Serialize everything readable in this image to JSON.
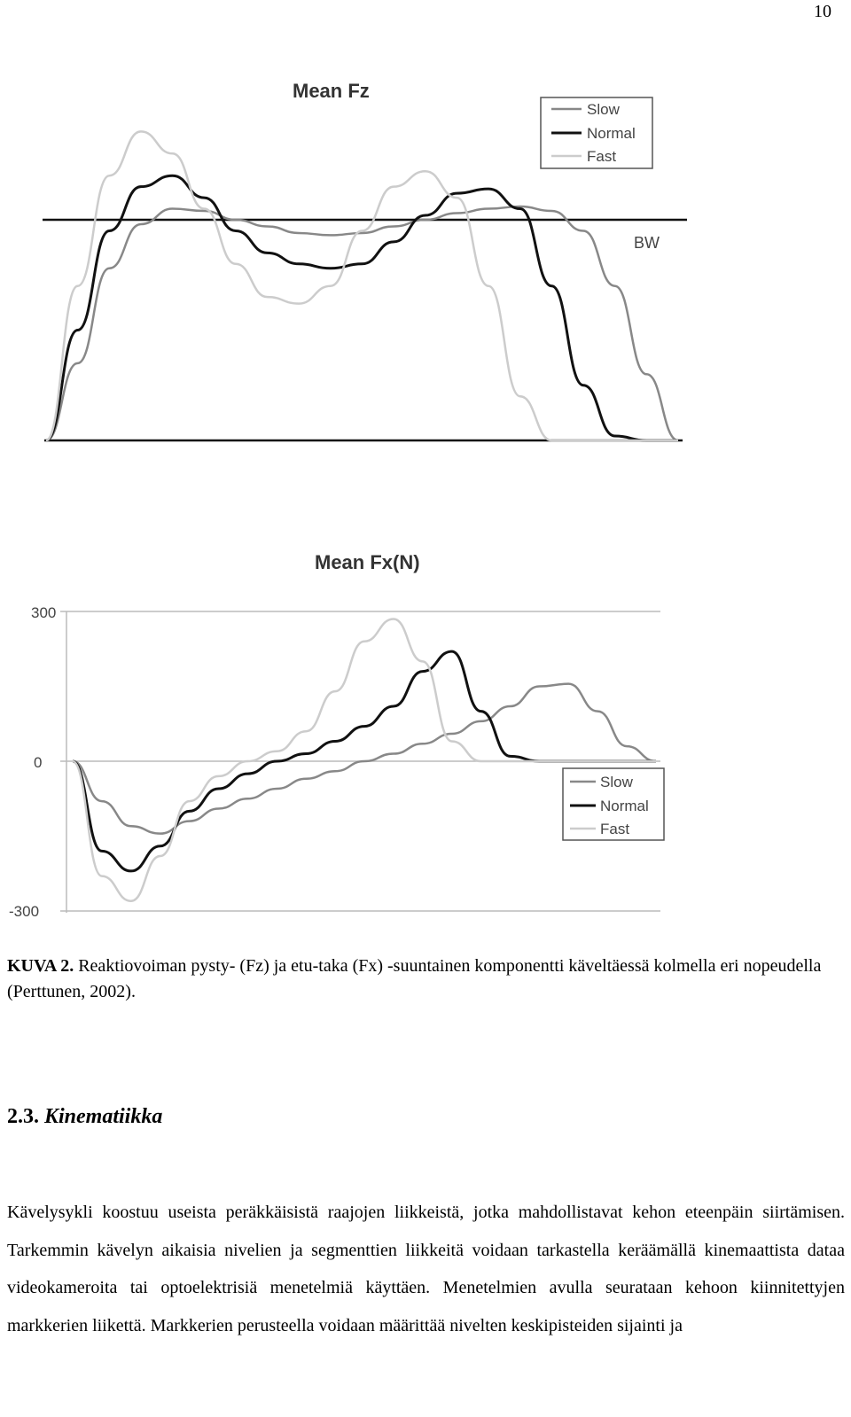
{
  "page_number": "10",
  "chart_data": [
    {
      "type": "line",
      "title": "Mean Fz",
      "xlabel": "",
      "ylabel": "",
      "reference_line_label": "BW",
      "legend": {
        "entries": [
          "Slow",
          "Normal",
          "Fast"
        ],
        "placement": "top-right"
      },
      "colors": {
        "Slow": "#888888",
        "Normal": "#111111",
        "Fast": "#cccccc"
      },
      "series": [
        {
          "name": "Slow",
          "x": [
            0,
            5,
            10,
            15,
            20,
            25,
            30,
            35,
            40,
            45,
            50,
            55,
            60,
            65,
            70,
            75,
            80,
            85,
            90,
            95,
            100
          ],
          "y": [
            0,
            0.35,
            0.78,
            0.98,
            1.05,
            1.04,
            1.0,
            0.97,
            0.94,
            0.93,
            0.94,
            0.97,
            1.0,
            1.03,
            1.05,
            1.06,
            1.04,
            0.95,
            0.7,
            0.3,
            0
          ]
        },
        {
          "name": "Normal",
          "x": [
            0,
            5,
            10,
            15,
            20,
            25,
            30,
            35,
            40,
            45,
            50,
            55,
            60,
            65,
            70,
            75,
            80,
            85,
            90,
            95,
            100
          ],
          "y": [
            0,
            0.5,
            0.95,
            1.15,
            1.2,
            1.1,
            0.95,
            0.85,
            0.8,
            0.78,
            0.8,
            0.9,
            1.02,
            1.12,
            1.14,
            1.05,
            0.7,
            0.25,
            0.02,
            0,
            0
          ]
        },
        {
          "name": "Fast",
          "x": [
            0,
            5,
            10,
            15,
            20,
            25,
            30,
            35,
            40,
            45,
            50,
            55,
            60,
            65,
            70,
            75,
            80,
            85,
            90,
            95,
            100
          ],
          "y": [
            0,
            0.7,
            1.2,
            1.4,
            1.3,
            1.05,
            0.8,
            0.65,
            0.62,
            0.7,
            0.95,
            1.15,
            1.22,
            1.1,
            0.7,
            0.2,
            0,
            0,
            0,
            0,
            0
          ]
        }
      ]
    },
    {
      "type": "line",
      "title": "Mean Fx(N)",
      "xlabel": "",
      "ylabel": "",
      "ylim": [
        -300,
        300
      ],
      "yticks": [
        "300",
        "0",
        "-300"
      ],
      "legend": {
        "entries": [
          "Slow",
          "Normal",
          "Fast"
        ],
        "placement": "bottom-right"
      },
      "colors": {
        "Slow": "#888888",
        "Normal": "#111111",
        "Fast": "#cccccc"
      },
      "series": [
        {
          "name": "Slow",
          "x": [
            0,
            5,
            10,
            15,
            20,
            25,
            30,
            35,
            40,
            45,
            50,
            55,
            60,
            65,
            70,
            75,
            80,
            85,
            90,
            95,
            100
          ],
          "y": [
            0,
            -80,
            -130,
            -145,
            -120,
            -95,
            -75,
            -55,
            -35,
            -20,
            0,
            15,
            35,
            55,
            80,
            110,
            150,
            155,
            100,
            30,
            0
          ]
        },
        {
          "name": "Normal",
          "x": [
            0,
            5,
            10,
            15,
            20,
            25,
            30,
            35,
            40,
            45,
            50,
            55,
            60,
            65,
            70,
            75,
            80,
            85,
            90,
            95,
            100
          ],
          "y": [
            0,
            -180,
            -220,
            -170,
            -100,
            -55,
            -25,
            0,
            15,
            40,
            70,
            110,
            180,
            220,
            100,
            10,
            0,
            0,
            0,
            0,
            0
          ]
        },
        {
          "name": "Fast",
          "x": [
            0,
            5,
            10,
            15,
            20,
            25,
            30,
            35,
            40,
            45,
            50,
            55,
            60,
            65,
            70,
            75,
            80,
            85,
            90,
            95,
            100
          ],
          "y": [
            0,
            -230,
            -280,
            -190,
            -80,
            -30,
            0,
            20,
            60,
            140,
            240,
            285,
            200,
            40,
            0,
            0,
            0,
            0,
            0,
            0,
            0
          ]
        }
      ]
    }
  ],
  "caption": {
    "label": "KUVA 2.",
    "text": " Reaktiovoiman pysty- (Fz) ja etu-taka (Fx) -suuntainen komponentti käveltäessä kolmella eri nopeudella (Perttunen, 2002)."
  },
  "section": {
    "number": "2.3.",
    "title": "Kinematiikka"
  },
  "body_text": "Kävelysykli koostuu useista peräkkäisistä raajojen liikkeistä, jotka mahdollistavat kehon eteenpäin siirtämisen. Tarkemmin kävelyn aikaisia nivelien ja segmenttien liikkeitä voidaan tarkastella keräämällä kinemaattista dataa videokameroita tai optoelektrisiä menetelmiä käyttäen. Menetelmien avulla seurataan kehoon kiinnitettyjen markkerien liikettä. Markkerien perusteella voidaan määrittää nivelten keskipisteiden sijainti ja"
}
